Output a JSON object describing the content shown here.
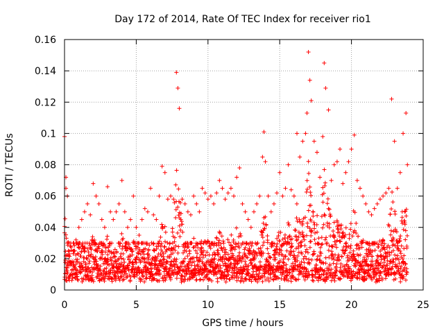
{
  "chart_data": {
    "type": "scatter",
    "title": "Day 172 of 2014, Rate Of TEC Index for receiver rio1",
    "xlabel": "GPS time / hours",
    "ylabel": "ROTI / TECUs",
    "xlim": [
      0,
      25
    ],
    "ylim": [
      0,
      0.16
    ],
    "xticks": [
      0,
      5,
      10,
      15,
      20,
      25
    ],
    "xtick_labels": [
      "0",
      "5",
      "10",
      "15",
      "20",
      "25"
    ],
    "yticks": [
      0,
      0.02,
      0.04,
      0.06,
      0.08,
      0.1,
      0.12,
      0.14,
      0.16
    ],
    "ytick_labels": [
      "0",
      "0.02",
      "0.04",
      "0.06",
      "0.08",
      "0.1",
      "0.12",
      "0.14",
      "0.16"
    ],
    "grid": true,
    "marker": "+",
    "series": [
      {
        "name": "ROTI",
        "color": "#ff0000",
        "x": [
          0.0,
          0.1,
          0.1,
          0.2,
          0.2,
          0.3,
          0.4,
          0.6,
          0.8,
          1.0,
          1.2,
          1.4,
          1.6,
          1.8,
          2.0,
          2.2,
          2.4,
          2.6,
          2.8,
          3.0,
          3.2,
          3.4,
          3.6,
          3.8,
          4.0,
          4.2,
          4.4,
          4.6,
          4.8,
          5.0,
          5.2,
          5.4,
          5.6,
          5.8,
          6.0,
          6.2,
          6.4,
          6.6,
          6.8,
          7.0,
          7.2,
          7.4,
          7.6,
          7.8,
          7.9,
          8.0,
          8.2,
          8.4,
          8.6,
          8.8,
          9.0,
          9.2,
          9.4,
          9.6,
          9.8,
          10.0,
          10.2,
          10.4,
          10.6,
          10.8,
          11.0,
          11.2,
          11.4,
          11.6,
          11.8,
          12.0,
          12.2,
          12.4,
          12.6,
          12.8,
          13.0,
          13.2,
          13.4,
          13.6,
          13.8,
          13.9,
          14.0,
          14.2,
          14.4,
          14.6,
          14.8,
          15.0,
          15.2,
          15.4,
          15.6,
          15.8,
          16.0,
          16.2,
          16.4,
          16.6,
          16.8,
          16.9,
          17.0,
          17.1,
          17.2,
          17.4,
          17.6,
          17.8,
          18.0,
          18.1,
          18.2,
          18.4,
          18.6,
          18.8,
          19.0,
          19.2,
          19.4,
          19.6,
          19.8,
          20.0,
          20.2,
          20.4,
          20.6,
          20.8,
          21.0,
          21.2,
          21.4,
          21.6,
          21.8,
          22.0,
          22.2,
          22.4,
          22.6,
          22.8,
          23.0,
          23.2,
          23.4,
          23.6,
          23.8,
          23.9
        ],
        "y": [
          0.098,
          0.072,
          0.065,
          0.06,
          0.03,
          0.022,
          0.018,
          0.025,
          0.032,
          0.04,
          0.045,
          0.05,
          0.055,
          0.048,
          0.068,
          0.06,
          0.055,
          0.045,
          0.04,
          0.066,
          0.05,
          0.045,
          0.05,
          0.055,
          0.07,
          0.05,
          0.04,
          0.045,
          0.06,
          0.04,
          0.035,
          0.045,
          0.052,
          0.05,
          0.065,
          0.048,
          0.045,
          0.06,
          0.079,
          0.075,
          0.058,
          0.06,
          0.058,
          0.139,
          0.129,
          0.116,
          0.058,
          0.055,
          0.05,
          0.048,
          0.06,
          0.055,
          0.05,
          0.065,
          0.062,
          0.058,
          0.06,
          0.055,
          0.062,
          0.07,
          0.065,
          0.058,
          0.062,
          0.065,
          0.06,
          0.072,
          0.078,
          0.055,
          0.05,
          0.045,
          0.04,
          0.05,
          0.055,
          0.06,
          0.085,
          0.101,
          0.082,
          0.06,
          0.05,
          0.055,
          0.062,
          0.075,
          0.06,
          0.065,
          0.08,
          0.064,
          0.06,
          0.1,
          0.085,
          0.095,
          0.1,
          0.113,
          0.152,
          0.134,
          0.121,
          0.095,
          0.088,
          0.072,
          0.098,
          0.145,
          0.129,
          0.115,
          0.07,
          0.08,
          0.082,
          0.09,
          0.068,
          0.075,
          0.082,
          0.09,
          0.099,
          0.07,
          0.065,
          0.06,
          0.055,
          0.05,
          0.048,
          0.052,
          0.055,
          0.058,
          0.06,
          0.062,
          0.065,
          0.122,
          0.095,
          0.065,
          0.075,
          0.1,
          0.113,
          0.08
        ],
        "noise_floor": [
          0.005,
          0.025
        ]
      }
    ]
  }
}
